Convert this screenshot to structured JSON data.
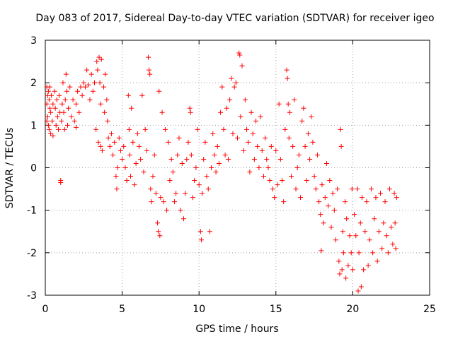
{
  "chart_data": {
    "type": "scatter",
    "title": "Day 083 of 2017, Sidereal Day-to-day VTEC variation (SDTVAR) for receiver igeo",
    "xlabel": "GPS time / hours",
    "ylabel": "SDTVAR / TECUs",
    "xlim": [
      0,
      25
    ],
    "ylim": [
      -3,
      3
    ],
    "xticks": [
      "0",
      "5",
      "10",
      "15",
      "20",
      "25"
    ],
    "yticks": [
      "-3",
      "-2",
      "-1",
      "0",
      "1",
      "2",
      "3"
    ],
    "grid": true,
    "marker": "+",
    "series": [
      {
        "name": "SDTVAR",
        "color": "#ff0000",
        "points": [
          [
            0.1,
            1.9
          ],
          [
            0.1,
            1.5
          ],
          [
            0.1,
            1.1
          ],
          [
            0.15,
            1.7
          ],
          [
            0.15,
            1.2
          ],
          [
            0.2,
            1.8
          ],
          [
            0.2,
            1.0
          ],
          [
            0.25,
            1.6
          ],
          [
            0.25,
            0.9
          ],
          [
            0.3,
            1.4
          ],
          [
            0.3,
            1.9
          ],
          [
            0.35,
            1.3
          ],
          [
            0.35,
            0.8
          ],
          [
            0.4,
            1.7
          ],
          [
            0.45,
            1.1
          ],
          [
            0.5,
            1.5
          ],
          [
            0.5,
            0.75
          ],
          [
            0.6,
            1.8
          ],
          [
            0.65,
            1.4
          ],
          [
            0.7,
            1.0
          ],
          [
            0.75,
            1.6
          ],
          [
            0.8,
            1.2
          ],
          [
            0.85,
            0.9
          ],
          [
            0.9,
            1.7
          ],
          [
            0.95,
            1.3
          ],
          [
            1.0,
            -0.3
          ],
          [
            1.0,
            -0.35
          ],
          [
            1.05,
            1.1
          ],
          [
            1.1,
            1.5
          ],
          [
            1.15,
            2.0
          ],
          [
            1.2,
            1.3
          ],
          [
            1.25,
            0.9
          ],
          [
            1.3,
            1.6
          ],
          [
            1.35,
            2.2
          ],
          [
            1.4,
            1.8
          ],
          [
            1.45,
            1.0
          ],
          [
            1.5,
            1.4
          ],
          [
            1.6,
            1.9
          ],
          [
            1.7,
            1.2
          ],
          [
            1.8,
            1.6
          ],
          [
            1.9,
            1.1
          ],
          [
            2.0,
            1.5
          ],
          [
            2.0,
            0.95
          ],
          [
            2.1,
            1.8
          ],
          [
            2.2,
            1.3
          ],
          [
            2.3,
            1.9
          ],
          [
            2.4,
            1.7
          ],
          [
            2.5,
            2.0
          ],
          [
            2.6,
            1.9
          ],
          [
            2.7,
            2.3
          ],
          [
            2.8,
            1.95
          ],
          [
            2.9,
            1.6
          ],
          [
            3.0,
            2.2
          ],
          [
            3.1,
            1.8
          ],
          [
            3.2,
            2.0
          ],
          [
            3.3,
            0.9
          ],
          [
            3.35,
            2.5
          ],
          [
            3.4,
            2.3
          ],
          [
            3.45,
            0.6
          ],
          [
            3.5,
            2.6
          ],
          [
            3.55,
            2.0
          ],
          [
            3.6,
            1.5
          ],
          [
            3.6,
            0.5
          ],
          [
            3.65,
            2.55
          ],
          [
            3.7,
            0.4
          ],
          [
            3.8,
            1.9
          ],
          [
            3.85,
            1.3
          ],
          [
            3.9,
            2.2
          ],
          [
            4.0,
            1.6
          ],
          [
            4.05,
            1.1
          ],
          [
            4.1,
            0.7
          ],
          [
            4.2,
            0.5
          ],
          [
            4.3,
            0.8
          ],
          [
            4.4,
            0.3
          ],
          [
            4.5,
            0.6
          ],
          [
            4.6,
            -0.2
          ],
          [
            4.65,
            -0.5
          ],
          [
            4.7,
            0.0
          ],
          [
            4.8,
            0.7
          ],
          [
            4.9,
            0.4
          ],
          [
            5.0,
            0.2
          ],
          [
            5.1,
            0.5
          ],
          [
            5.2,
            0.0
          ],
          [
            5.3,
            -0.3
          ],
          [
            5.4,
            1.7
          ],
          [
            5.45,
            0.9
          ],
          [
            5.5,
            0.3
          ],
          [
            5.55,
            -0.2
          ],
          [
            5.6,
            1.4
          ],
          [
            5.7,
            0.6
          ],
          [
            5.8,
            -0.4
          ],
          [
            5.9,
            0.1
          ],
          [
            6.0,
            0.8
          ],
          [
            6.1,
            0.5
          ],
          [
            6.2,
            0.2
          ],
          [
            6.3,
            1.7
          ],
          [
            6.4,
            -0.1
          ],
          [
            6.5,
            0.9
          ],
          [
            6.6,
            0.4
          ],
          [
            6.7,
            2.6
          ],
          [
            6.75,
            2.3
          ],
          [
            6.8,
            2.2
          ],
          [
            6.85,
            -0.5
          ],
          [
            6.9,
            -0.8
          ],
          [
            7.0,
            -0.2
          ],
          [
            7.1,
            0.3
          ],
          [
            7.2,
            -0.6
          ],
          [
            7.3,
            -1.3
          ],
          [
            7.35,
            -1.5
          ],
          [
            7.4,
            1.8
          ],
          [
            7.45,
            -1.6
          ],
          [
            7.5,
            -0.7
          ],
          [
            7.6,
            1.3
          ],
          [
            7.7,
            -0.8
          ],
          [
            7.8,
            0.9
          ],
          [
            7.9,
            -1.0
          ],
          [
            8.0,
            0.6
          ],
          [
            8.1,
            -0.3
          ],
          [
            8.2,
            0.2
          ],
          [
            8.3,
            -0.1
          ],
          [
            8.4,
            -0.8
          ],
          [
            8.5,
            -0.6
          ],
          [
            8.6,
            0.3
          ],
          [
            8.7,
            0.7
          ],
          [
            8.8,
            -1.0
          ],
          [
            8.9,
            0.1
          ],
          [
            9.0,
            -1.2
          ],
          [
            9.1,
            -0.6
          ],
          [
            9.2,
            0.2
          ],
          [
            9.3,
            0.6
          ],
          [
            9.4,
            1.4
          ],
          [
            9.45,
            1.3
          ],
          [
            9.5,
            0.3
          ],
          [
            9.6,
            -0.7
          ],
          [
            9.7,
            -0.3
          ],
          [
            9.8,
            0.0
          ],
          [
            9.9,
            0.9
          ],
          [
            10.0,
            -0.4
          ],
          [
            10.1,
            -1.5
          ],
          [
            10.15,
            -1.7
          ],
          [
            10.2,
            -0.6
          ],
          [
            10.3,
            0.2
          ],
          [
            10.4,
            0.6
          ],
          [
            10.5,
            -0.2
          ],
          [
            10.6,
            -0.5
          ],
          [
            10.7,
            -1.5
          ],
          [
            10.8,
            0.0
          ],
          [
            10.9,
            0.8
          ],
          [
            11.0,
            0.3
          ],
          [
            11.1,
            -0.1
          ],
          [
            11.2,
            0.5
          ],
          [
            11.3,
            0.1
          ],
          [
            11.4,
            1.3
          ],
          [
            11.5,
            1.9
          ],
          [
            11.6,
            0.9
          ],
          [
            11.7,
            0.3
          ],
          [
            11.8,
            1.4
          ],
          [
            11.9,
            0.2
          ],
          [
            12.0,
            1.6
          ],
          [
            12.1,
            2.1
          ],
          [
            12.2,
            0.8
          ],
          [
            12.3,
            1.9
          ],
          [
            12.4,
            2.0
          ],
          [
            12.5,
            0.7
          ],
          [
            12.6,
            2.7
          ],
          [
            12.65,
            2.65
          ],
          [
            12.7,
            1.2
          ],
          [
            12.8,
            2.4
          ],
          [
            12.9,
            0.4
          ],
          [
            13.0,
            1.6
          ],
          [
            13.1,
            0.9
          ],
          [
            13.2,
            0.6
          ],
          [
            13.3,
            -0.1
          ],
          [
            13.4,
            1.3
          ],
          [
            13.5,
            0.8
          ],
          [
            13.6,
            0.2
          ],
          [
            13.7,
            1.1
          ],
          [
            13.8,
            0.5
          ],
          [
            13.9,
            0.0
          ],
          [
            14.0,
            1.2
          ],
          [
            14.1,
            0.4
          ],
          [
            14.2,
            -0.2
          ],
          [
            14.3,
            0.7
          ],
          [
            14.4,
            0.2
          ],
          [
            14.5,
            0.0
          ],
          [
            14.6,
            -0.3
          ],
          [
            14.7,
            0.5
          ],
          [
            14.8,
            -0.5
          ],
          [
            14.9,
            -0.7
          ],
          [
            15.0,
            0.4
          ],
          [
            15.1,
            -0.4
          ],
          [
            15.2,
            1.5
          ],
          [
            15.3,
            0.2
          ],
          [
            15.4,
            -0.3
          ],
          [
            15.5,
            -0.8
          ],
          [
            15.6,
            0.9
          ],
          [
            15.7,
            2.3
          ],
          [
            15.75,
            2.1
          ],
          [
            15.8,
            1.5
          ],
          [
            15.85,
            0.7
          ],
          [
            15.9,
            1.3
          ],
          [
            16.0,
            -0.2
          ],
          [
            16.1,
            0.5
          ],
          [
            16.2,
            1.6
          ],
          [
            16.3,
            -0.5
          ],
          [
            16.4,
            0.0
          ],
          [
            16.5,
            0.3
          ],
          [
            16.6,
            -0.7
          ],
          [
            16.7,
            1.1
          ],
          [
            16.8,
            1.4
          ],
          [
            16.9,
            0.5
          ],
          [
            17.0,
            -0.3
          ],
          [
            17.1,
            0.8
          ],
          [
            17.2,
            0.2
          ],
          [
            17.3,
            1.2
          ],
          [
            17.4,
            0.6
          ],
          [
            17.5,
            -0.2
          ],
          [
            17.6,
            -0.5
          ],
          [
            17.7,
            0.3
          ],
          [
            17.8,
            -0.8
          ],
          [
            17.9,
            -1.1
          ],
          [
            17.95,
            -1.95
          ],
          [
            18.0,
            -0.4
          ],
          [
            18.1,
            -1.3
          ],
          [
            18.2,
            -0.7
          ],
          [
            18.3,
            0.1
          ],
          [
            18.4,
            -0.9
          ],
          [
            18.5,
            -0.3
          ],
          [
            18.6,
            -1.4
          ],
          [
            18.7,
            -0.6
          ],
          [
            18.8,
            -1.0
          ],
          [
            18.9,
            -1.7
          ],
          [
            19.0,
            -0.5
          ],
          [
            19.1,
            -2.2
          ],
          [
            19.15,
            -2.5
          ],
          [
            19.2,
            0.9
          ],
          [
            19.25,
            0.5
          ],
          [
            19.3,
            -2.4
          ],
          [
            19.35,
            -1.5
          ],
          [
            19.4,
            -2.0
          ],
          [
            19.5,
            -0.8
          ],
          [
            19.55,
            -2.6
          ],
          [
            19.6,
            -1.2
          ],
          [
            19.7,
            -2.3
          ],
          [
            19.8,
            -1.6
          ],
          [
            19.9,
            -2.0
          ],
          [
            19.95,
            -0.5
          ],
          [
            20.0,
            -2.4
          ],
          [
            20.1,
            -1.1
          ],
          [
            20.2,
            -1.6
          ],
          [
            20.3,
            -0.5
          ],
          [
            20.35,
            -2.9
          ],
          [
            20.4,
            -2.0
          ],
          [
            20.5,
            -1.3
          ],
          [
            20.55,
            -2.8
          ],
          [
            20.6,
            -0.7
          ],
          [
            20.7,
            -2.4
          ],
          [
            20.8,
            -1.5
          ],
          [
            20.9,
            -0.8
          ],
          [
            21.0,
            -2.3
          ],
          [
            21.1,
            -1.7
          ],
          [
            21.2,
            -0.5
          ],
          [
            21.3,
            -2.0
          ],
          [
            21.4,
            -1.2
          ],
          [
            21.5,
            -0.7
          ],
          [
            21.6,
            -2.2
          ],
          [
            21.7,
            -1.5
          ],
          [
            21.8,
            -0.6
          ],
          [
            21.9,
            -1.9
          ],
          [
            22.0,
            -1.3
          ],
          [
            22.1,
            -0.8
          ],
          [
            22.2,
            -1.6
          ],
          [
            22.3,
            -2.0
          ],
          [
            22.4,
            -0.5
          ],
          [
            22.5,
            -1.4
          ],
          [
            22.6,
            -1.8
          ],
          [
            22.7,
            -0.6
          ],
          [
            22.75,
            -1.3
          ],
          [
            22.8,
            -1.9
          ],
          [
            22.85,
            -0.7
          ]
        ]
      }
    ]
  }
}
